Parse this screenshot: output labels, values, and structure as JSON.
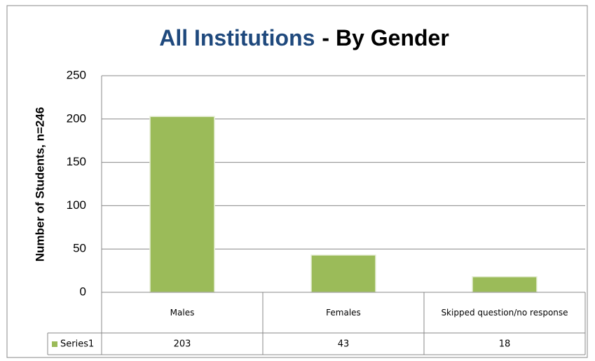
{
  "chart_data": {
    "type": "bar",
    "title": [
      "All Institutions",
      "- By Gender"
    ],
    "title_colors": [
      "#1f497d",
      "#000000"
    ],
    "y_label": "Number of Students, n=246",
    "categories": [
      "Males",
      "Females",
      "Skipped question/no response"
    ],
    "series": [
      {
        "name": "Series1",
        "color": "#9bbb59",
        "values": [
          203,
          43,
          18
        ]
      }
    ],
    "ylim": [
      0,
      250
    ],
    "yticks": [
      0,
      50,
      100,
      150,
      200,
      250
    ],
    "grid": true,
    "data_table": true
  }
}
